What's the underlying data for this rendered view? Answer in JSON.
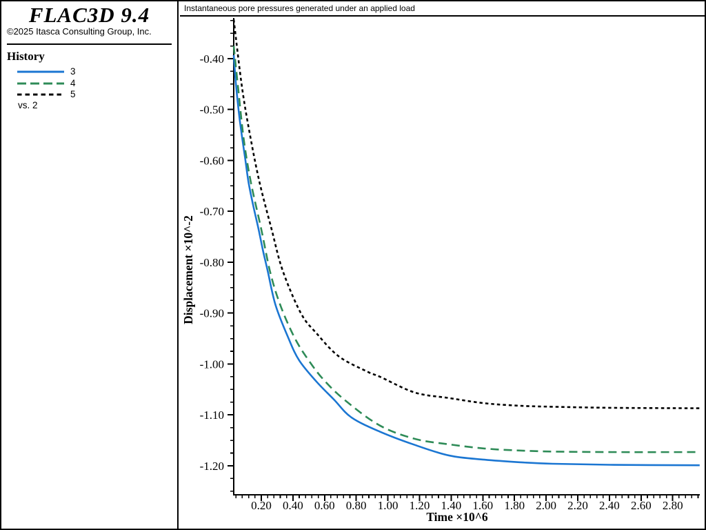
{
  "window": {
    "background": "#ffffff",
    "border_color": "#000000"
  },
  "sidebar": {
    "logo": "FLAC3D 9.4",
    "copyright": "©2025 Itasca Consulting Group, Inc.",
    "history": {
      "title": "History",
      "items": [
        {
          "label": "3",
          "color": "#1b76d2",
          "style": "solid"
        },
        {
          "label": "4",
          "color": "#2e8b57",
          "style": "dashed"
        },
        {
          "label": "5",
          "color": "#000000",
          "style": "dotted"
        }
      ],
      "footnote": "vs. 2"
    }
  },
  "titlebar": {
    "text": "Instantaneous pore pressures generated under an applied load"
  },
  "chart_data": {
    "type": "line",
    "title": "Instantaneous pore pressures generated under an applied load",
    "xlabel": "Time ×10^6",
    "ylabel": "Displacement ×10^-2",
    "xlim": [
      0.026,
      2.971
    ],
    "ylim": [
      -1.257,
      -0.32
    ],
    "x_major_ticks": [
      0.2,
      0.4,
      0.6,
      0.8,
      1.0,
      1.2,
      1.4,
      1.6,
      1.8,
      2.0,
      2.2,
      2.4,
      2.6,
      2.8
    ],
    "x_minor_step": 0.04,
    "y_major_ticks": [
      -0.4,
      -0.5,
      -0.6,
      -0.7,
      -0.8,
      -0.9,
      -1.0,
      -1.1,
      -1.2
    ],
    "y_minor_step": 0.025,
    "grid": false,
    "legend_position": "left-sidebar",
    "axis_color": "#000000",
    "series": [
      {
        "name": "3",
        "color": "#1b76d2",
        "dash": "solid",
        "points": [
          [
            0.026,
            -0.393
          ],
          [
            0.04,
            -0.45
          ],
          [
            0.06,
            -0.51
          ],
          [
            0.08,
            -0.557
          ],
          [
            0.1,
            -0.6
          ],
          [
            0.12,
            -0.644
          ],
          [
            0.15,
            -0.69
          ],
          [
            0.183,
            -0.735
          ],
          [
            0.213,
            -0.78
          ],
          [
            0.24,
            -0.816
          ],
          [
            0.29,
            -0.884
          ],
          [
            0.37,
            -0.948
          ],
          [
            0.44,
            -0.993
          ],
          [
            0.55,
            -1.035
          ],
          [
            0.66,
            -1.07
          ],
          [
            0.77,
            -1.105
          ],
          [
            0.95,
            -1.133
          ],
          [
            1.17,
            -1.159
          ],
          [
            1.39,
            -1.18
          ],
          [
            1.61,
            -1.188
          ],
          [
            1.83,
            -1.193
          ],
          [
            2.04,
            -1.196
          ],
          [
            2.4,
            -1.198
          ],
          [
            2.97,
            -1.199
          ]
        ]
      },
      {
        "name": "4",
        "color": "#2e8b57",
        "dash": "dashed",
        "points": [
          [
            0.026,
            -0.375
          ],
          [
            0.056,
            -0.464
          ],
          [
            0.09,
            -0.56
          ],
          [
            0.135,
            -0.644
          ],
          [
            0.2,
            -0.735
          ],
          [
            0.257,
            -0.82
          ],
          [
            0.32,
            -0.884
          ],
          [
            0.41,
            -0.948
          ],
          [
            0.5,
            -0.993
          ],
          [
            0.6,
            -1.033
          ],
          [
            0.74,
            -1.074
          ],
          [
            0.95,
            -1.121
          ],
          [
            1.17,
            -1.147
          ],
          [
            1.39,
            -1.158
          ],
          [
            1.61,
            -1.166
          ],
          [
            1.83,
            -1.17
          ],
          [
            2.04,
            -1.172
          ],
          [
            2.4,
            -1.173
          ],
          [
            2.97,
            -1.173
          ]
        ]
      },
      {
        "name": "5",
        "color": "#000000",
        "dash": "dotted",
        "points": [
          [
            0.026,
            -0.323
          ],
          [
            0.08,
            -0.46
          ],
          [
            0.135,
            -0.56
          ],
          [
            0.19,
            -0.644
          ],
          [
            0.265,
            -0.735
          ],
          [
            0.335,
            -0.816
          ],
          [
            0.45,
            -0.9
          ],
          [
            0.55,
            -0.94
          ],
          [
            0.69,
            -0.985
          ],
          [
            0.87,
            -1.015
          ],
          [
            0.95,
            -1.025
          ],
          [
            1.17,
            -1.056
          ],
          [
            1.39,
            -1.067
          ],
          [
            1.61,
            -1.077
          ],
          [
            1.83,
            -1.082
          ],
          [
            2.04,
            -1.084
          ],
          [
            2.4,
            -1.086
          ],
          [
            2.97,
            -1.087
          ]
        ]
      }
    ]
  }
}
